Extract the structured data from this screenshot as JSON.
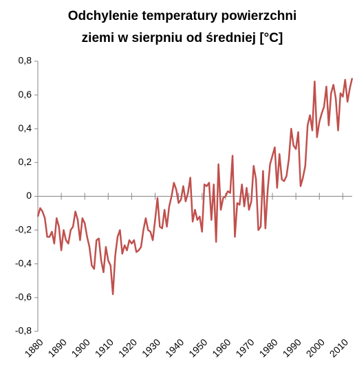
{
  "chart_data": {
    "type": "line",
    "title": [
      "Odchylenie temperatury powierzchni",
      "ziemi w sierpniu od średniej [°C]"
    ],
    "x": [
      1880,
      1881,
      1882,
      1883,
      1884,
      1885,
      1886,
      1887,
      1888,
      1889,
      1890,
      1891,
      1892,
      1893,
      1894,
      1895,
      1896,
      1897,
      1898,
      1899,
      1900,
      1901,
      1902,
      1903,
      1904,
      1905,
      1906,
      1907,
      1908,
      1909,
      1910,
      1911,
      1912,
      1913,
      1914,
      1915,
      1916,
      1917,
      1918,
      1919,
      1920,
      1921,
      1922,
      1923,
      1924,
      1925,
      1926,
      1927,
      1928,
      1929,
      1930,
      1931,
      1932,
      1933,
      1934,
      1935,
      1936,
      1937,
      1938,
      1939,
      1940,
      1941,
      1942,
      1943,
      1944,
      1945,
      1946,
      1947,
      1948,
      1949,
      1950,
      1951,
      1952,
      1953,
      1954,
      1955,
      1956,
      1957,
      1958,
      1959,
      1960,
      1961,
      1962,
      1963,
      1964,
      1965,
      1966,
      1967,
      1968,
      1969,
      1970,
      1971,
      1972,
      1973,
      1974,
      1975,
      1976,
      1977,
      1978,
      1979,
      1980,
      1981,
      1982,
      1983,
      1984,
      1985,
      1986,
      1987,
      1988,
      1989,
      1990,
      1991,
      1992,
      1993,
      1994,
      1995,
      1996,
      1997,
      1998,
      1999,
      2000,
      2001,
      2002,
      2003,
      2004,
      2005,
      2006,
      2007,
      2008,
      2009,
      2010,
      2011,
      2012,
      2013,
      2014
    ],
    "values": [
      -0.12,
      -0.07,
      -0.09,
      -0.13,
      -0.24,
      -0.24,
      -0.21,
      -0.28,
      -0.13,
      -0.18,
      -0.32,
      -0.2,
      -0.26,
      -0.28,
      -0.2,
      -0.18,
      -0.09,
      -0.14,
      -0.26,
      -0.13,
      -0.16,
      -0.24,
      -0.3,
      -0.41,
      -0.43,
      -0.26,
      -0.25,
      -0.38,
      -0.45,
      -0.3,
      -0.38,
      -0.41,
      -0.58,
      -0.35,
      -0.24,
      -0.2,
      -0.34,
      -0.29,
      -0.32,
      -0.26,
      -0.28,
      -0.26,
      -0.33,
      -0.32,
      -0.3,
      -0.2,
      -0.13,
      -0.2,
      -0.21,
      -0.26,
      -0.14,
      -0.01,
      -0.18,
      -0.19,
      -0.08,
      -0.18,
      -0.06,
      0.0,
      0.08,
      0.04,
      -0.04,
      -0.02,
      0.06,
      -0.03,
      0.02,
      0.11,
      -0.15,
      -0.08,
      -0.14,
      -0.12,
      -0.21,
      0.07,
      0.06,
      0.08,
      -0.14,
      0.07,
      -0.27,
      0.19,
      -0.08,
      -0.01,
      0.0,
      0.03,
      0.02,
      0.24,
      -0.24,
      -0.04,
      -0.05,
      0.07,
      -0.06,
      0.05,
      -0.08,
      -0.03,
      0.18,
      0.1,
      -0.2,
      -0.18,
      0.15,
      -0.19,
      0.04,
      0.19,
      0.24,
      0.29,
      0.05,
      0.25,
      0.1,
      0.09,
      0.12,
      0.22,
      0.4,
      0.3,
      0.28,
      0.38,
      0.06,
      0.11,
      0.18,
      0.42,
      0.48,
      0.39,
      0.68,
      0.35,
      0.44,
      0.49,
      0.53,
      0.65,
      0.42,
      0.61,
      0.66,
      0.58,
      0.39,
      0.61,
      0.59,
      0.69,
      0.56,
      0.64,
      0.7
    ],
    "color": "#c0504d",
    "xlim": [
      1880,
      2014
    ],
    "xticks": [
      1880,
      1890,
      1900,
      1910,
      1920,
      1930,
      1940,
      1950,
      1960,
      1970,
      1980,
      1990,
      2000,
      2010
    ],
    "ylim": [
      -0.8,
      0.8
    ],
    "yticks": [
      {
        "value": -0.8,
        "label": "-0,8"
      },
      {
        "value": -0.6,
        "label": "-0,6"
      },
      {
        "value": -0.4,
        "label": "-0,4"
      },
      {
        "value": -0.2,
        "label": "-0,2"
      },
      0,
      {
        "value": 0.2,
        "label": "0,2"
      },
      {
        "value": 0.4,
        "label": "0,4"
      },
      {
        "value": 0.6,
        "label": "0,6"
      },
      {
        "value": 0.8,
        "label": "0,8"
      }
    ]
  }
}
